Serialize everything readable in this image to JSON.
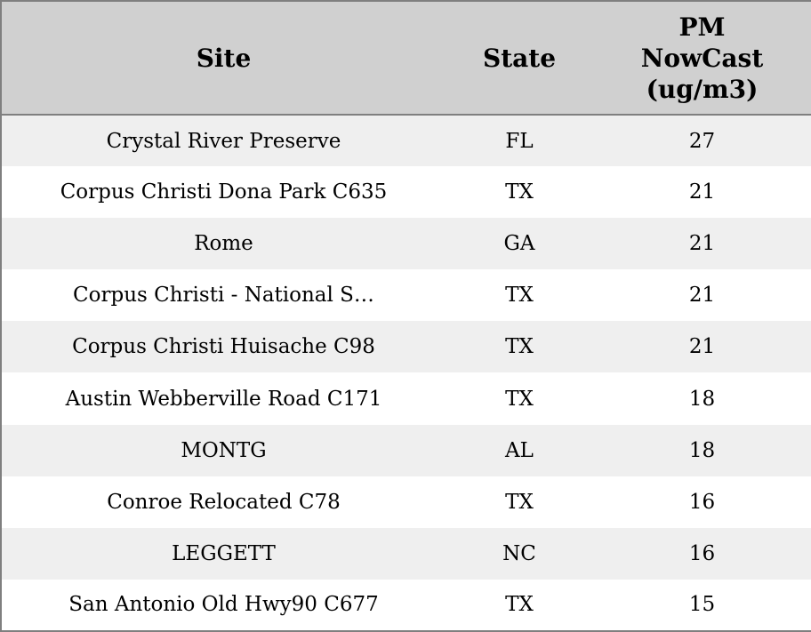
{
  "table": {
    "columns": [
      {
        "label": "Site"
      },
      {
        "label": "State"
      },
      {
        "label": "PM NowCast (ug/m3)"
      }
    ],
    "rows": [
      {
        "site": "Crystal River Preserve",
        "state": "FL",
        "pm_nowcast": "27"
      },
      {
        "site": "Corpus Christi Dona Park C635",
        "state": "TX",
        "pm_nowcast": "21"
      },
      {
        "site": "Rome",
        "state": "GA",
        "pm_nowcast": "21"
      },
      {
        "site": "Corpus Christi - National S…",
        "state": "TX",
        "pm_nowcast": "21"
      },
      {
        "site": "Corpus Christi Huisache C98",
        "state": "TX",
        "pm_nowcast": "21"
      },
      {
        "site": "Austin Webberville Road C171",
        "state": "TX",
        "pm_nowcast": "18"
      },
      {
        "site": "MONTG",
        "state": "AL",
        "pm_nowcast": "18"
      },
      {
        "site": "Conroe Relocated C78",
        "state": "TX",
        "pm_nowcast": "16"
      },
      {
        "site": "LEGGETT",
        "state": "NC",
        "pm_nowcast": "16"
      },
      {
        "site": "San Antonio Old Hwy90 C677",
        "state": "TX",
        "pm_nowcast": "15"
      }
    ]
  },
  "colors": {
    "header_bg": "#d0d0d0",
    "row_odd_bg": "#efefef",
    "row_even_bg": "#ffffff",
    "border": "#7f7f7f",
    "text": "#000000"
  }
}
